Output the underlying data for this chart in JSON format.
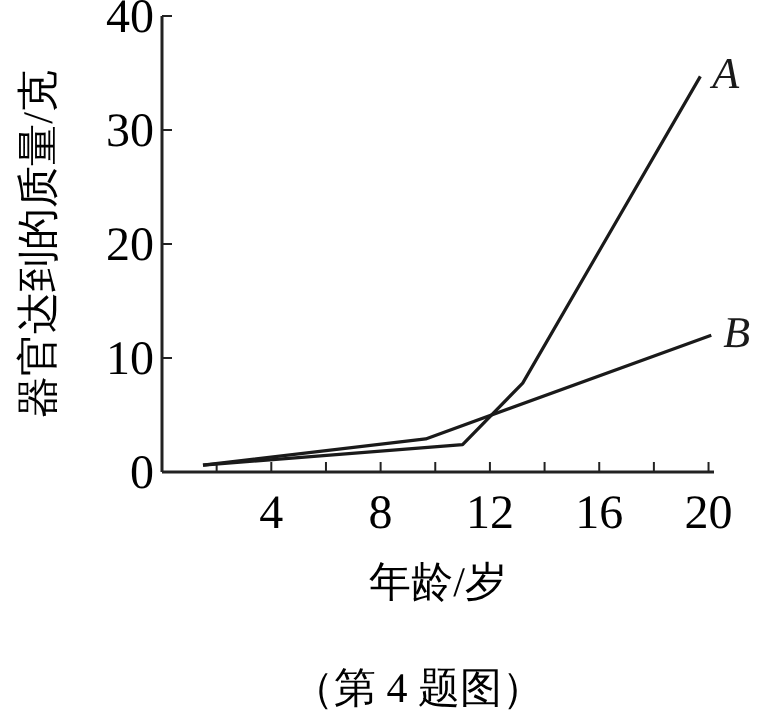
{
  "chart_data": {
    "type": "line",
    "xlabel": "年龄/岁",
    "ylabel": "器官达到的质量/克",
    "xlim": [
      0,
      20.2
    ],
    "ylim": [
      0,
      40
    ],
    "xticks": [
      {
        "value": 2,
        "label": null
      },
      4,
      {
        "value": 6,
        "label": null
      },
      8,
      {
        "value": 10,
        "label": null
      },
      12,
      {
        "value": 14,
        "label": null
      },
      16,
      {
        "value": 18,
        "label": null
      },
      20
    ],
    "yticks": [
      0,
      10,
      20,
      30,
      40
    ],
    "series": [
      {
        "name": "A",
        "color": "#1a1a1a",
        "x": [
          1.5,
          11,
          13.2,
          19.7
        ],
        "values": [
          0.6,
          2.4,
          7.8,
          34.7
        ]
      },
      {
        "name": "B",
        "color": "#1a1a1a",
        "x": [
          1.5,
          9.65,
          20.1
        ],
        "values": [
          0.6,
          2.9,
          12
        ]
      }
    ],
    "annotations": [
      "（第 4 题图）"
    ],
    "grid": false,
    "marker": "none",
    "line_style": "solid"
  }
}
